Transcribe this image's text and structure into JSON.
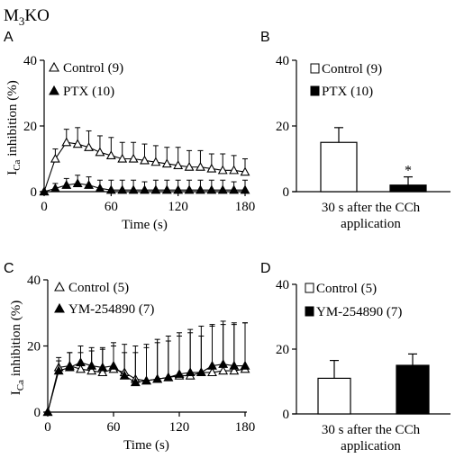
{
  "figure": {
    "title": "M3KO",
    "title_main": "M",
    "title_sub": "3",
    "title_tail": "KO"
  },
  "common": {
    "time_xlabel": "Time (s)",
    "ylabel_main": "I",
    "ylabel_sub": "Ca",
    "ylabel_tail": " inhibition (%)"
  },
  "chart_data": [
    {
      "panel": "A",
      "type": "line",
      "xlabel": "Time (s)",
      "ylabel": "ICa inhibition (%)",
      "xlim": [
        0,
        180
      ],
      "ylim": [
        0,
        40
      ],
      "xticks": [
        0,
        60,
        120,
        180
      ],
      "yticks": [
        0,
        20,
        40
      ],
      "x": [
        0,
        10,
        20,
        30,
        40,
        50,
        60,
        70,
        80,
        90,
        100,
        110,
        120,
        130,
        140,
        150,
        160,
        170,
        180
      ],
      "series": [
        {
          "name": "Control (9)",
          "marker": "open-triangle",
          "values": [
            0,
            10,
            15,
            14.5,
            13.5,
            12,
            11,
            10,
            10,
            9.5,
            9,
            8.5,
            8,
            7.5,
            7.5,
            7,
            6.5,
            6.5,
            6
          ],
          "errors": [
            0,
            3,
            4,
            5,
            5,
            5,
            5.5,
            5,
            5,
            5,
            5,
            5,
            5.5,
            5,
            5,
            4.5,
            5,
            4.5,
            4
          ]
        },
        {
          "name": "PTX (10)",
          "marker": "filled-triangle",
          "values": [
            0,
            1,
            2,
            2.5,
            2,
            1,
            0.5,
            0.5,
            0.5,
            0.5,
            0.5,
            0.5,
            0.5,
            0.5,
            0.5,
            0.5,
            0.5,
            0.5,
            0.5
          ],
          "errors": [
            0,
            1.5,
            2,
            2.5,
            2.5,
            2.5,
            3,
            3,
            3,
            2.5,
            3,
            3,
            3,
            3,
            3,
            3,
            3,
            2.5,
            3
          ]
        }
      ]
    },
    {
      "panel": "B",
      "type": "bar",
      "categories": [
        "Control (9)",
        "PTX (10)"
      ],
      "values": [
        15,
        2
      ],
      "errors": [
        4.5,
        2.5
      ],
      "colors": [
        "#ffffff",
        "#000000"
      ],
      "ylim": [
        0,
        40
      ],
      "yticks": [
        0,
        20,
        40
      ],
      "xlabel_lines": [
        "30 s after the CCh",
        "application"
      ],
      "annotation": "*"
    },
    {
      "panel": "C",
      "type": "line",
      "xlabel": "Time (s)",
      "ylabel": "ICa inhibition (%)",
      "xlim": [
        0,
        180
      ],
      "ylim": [
        0,
        40
      ],
      "xticks": [
        0,
        60,
        120,
        180
      ],
      "yticks": [
        0,
        20,
        40
      ],
      "x": [
        0,
        10,
        20,
        30,
        40,
        50,
        60,
        70,
        80,
        90,
        100,
        110,
        120,
        130,
        140,
        150,
        160,
        170,
        180
      ],
      "series": [
        {
          "name": "Control (5)",
          "marker": "open-triangle",
          "values": [
            0,
            13.5,
            14,
            13,
            12.5,
            12,
            13,
            12,
            10,
            9.5,
            10,
            10.5,
            11,
            11,
            12,
            12,
            12.5,
            12.5,
            13
          ],
          "errors": [
            0,
            3,
            4,
            5,
            6,
            7,
            8,
            8.5,
            10,
            11,
            12,
            12.5,
            13,
            14,
            14,
            14.5,
            14,
            14,
            14
          ]
        },
        {
          "name": "YM-254890 (7)",
          "marker": "filled-triangle",
          "values": [
            0,
            12.5,
            13.5,
            15,
            14,
            13.5,
            14,
            11,
            9,
            9.5,
            10,
            10.5,
            11.5,
            12,
            12,
            14,
            14.5,
            14,
            14
          ],
          "errors": [
            0,
            3,
            4.5,
            5,
            5.5,
            6,
            6,
            7,
            9,
            10,
            11,
            11,
            11.5,
            12,
            11,
            12,
            13,
            13,
            13
          ]
        }
      ]
    },
    {
      "panel": "D",
      "type": "bar",
      "categories": [
        "Control (5)",
        "YM-254890 (7)"
      ],
      "values": [
        11,
        15
      ],
      "errors": [
        5.5,
        3.5
      ],
      "colors": [
        "#ffffff",
        "#000000"
      ],
      "ylim": [
        0,
        40
      ],
      "yticks": [
        0,
        20,
        40
      ],
      "xlabel_lines": [
        "30 s after the CCh",
        "application"
      ]
    }
  ]
}
